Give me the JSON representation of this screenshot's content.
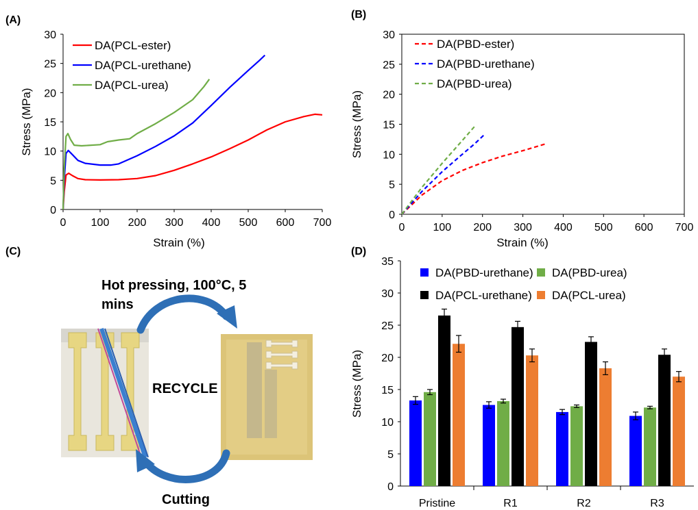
{
  "panels": {
    "a": "(A)",
    "b": "(B)",
    "c": "(C)",
    "d": "(D)"
  },
  "photo": {
    "top_caption_line1": "Hot pressing, 100°C, 5",
    "top_caption_line2": "mins",
    "center_label": "RECYCLE",
    "bottom_caption": "Cutting"
  },
  "chart_data": [
    {
      "id": "A",
      "type": "line",
      "title": "",
      "xlabel": "Strain (%)",
      "ylabel": "Stress (MPa)",
      "xlim": [
        0,
        700
      ],
      "ylim": [
        0,
        30
      ],
      "xticks": [
        0,
        100,
        200,
        300,
        400,
        500,
        600,
        700
      ],
      "yticks": [
        0,
        5,
        10,
        15,
        20,
        25,
        30
      ],
      "grid": false,
      "legend": "top-left",
      "series": [
        {
          "name": "DA(PCL-ester)",
          "color": "#ff0000",
          "dash": "solid",
          "points": [
            [
              0,
              0
            ],
            [
              3,
              3
            ],
            [
              8,
              5.9
            ],
            [
              15,
              6.2
            ],
            [
              25,
              5.8
            ],
            [
              40,
              5.3
            ],
            [
              60,
              5.1
            ],
            [
              100,
              5.05
            ],
            [
              150,
              5.1
            ],
            [
              200,
              5.3
            ],
            [
              250,
              5.8
            ],
            [
              300,
              6.7
            ],
            [
              350,
              7.8
            ],
            [
              400,
              9.0
            ],
            [
              450,
              10.4
            ],
            [
              500,
              11.9
            ],
            [
              550,
              13.6
            ],
            [
              600,
              15.0
            ],
            [
              650,
              15.9
            ],
            [
              680,
              16.3
            ],
            [
              700,
              16.2
            ]
          ]
        },
        {
          "name": "DA(PCL-urethane)",
          "color": "#0000ff",
          "dash": "solid",
          "points": [
            [
              0,
              0
            ],
            [
              3,
              5
            ],
            [
              8,
              9.6
            ],
            [
              14,
              10.1
            ],
            [
              25,
              9.4
            ],
            [
              40,
              8.4
            ],
            [
              60,
              7.9
            ],
            [
              100,
              7.6
            ],
            [
              130,
              7.6
            ],
            [
              150,
              7.8
            ],
            [
              200,
              9.2
            ],
            [
              250,
              10.8
            ],
            [
              300,
              12.6
            ],
            [
              350,
              14.8
            ],
            [
              400,
              17.8
            ],
            [
              450,
              20.9
            ],
            [
              500,
              23.8
            ],
            [
              530,
              25.5
            ],
            [
              545,
              26.4
            ]
          ]
        },
        {
          "name": "DA(PCL-urea)",
          "color": "#70ad47",
          "dash": "solid",
          "points": [
            [
              0,
              0
            ],
            [
              3,
              7
            ],
            [
              8,
              12.5
            ],
            [
              13,
              13.0
            ],
            [
              20,
              12.0
            ],
            [
              30,
              11.0
            ],
            [
              50,
              10.9
            ],
            [
              100,
              11.1
            ],
            [
              120,
              11.6
            ],
            [
              150,
              11.9
            ],
            [
              180,
              12.1
            ],
            [
              200,
              13.0
            ],
            [
              250,
              14.7
            ],
            [
              300,
              16.6
            ],
            [
              350,
              18.8
            ],
            [
              380,
              21.0
            ],
            [
              395,
              22.3
            ]
          ]
        }
      ]
    },
    {
      "id": "B",
      "type": "line",
      "title": "",
      "xlabel": "Strain (%)",
      "ylabel": "Stress (MPa)",
      "xlim": [
        0,
        700
      ],
      "ylim": [
        0,
        30
      ],
      "xticks": [
        0,
        100,
        200,
        300,
        400,
        500,
        600,
        700
      ],
      "yticks": [
        0,
        5,
        10,
        15,
        20,
        25,
        30
      ],
      "grid": false,
      "legend": "top-left",
      "series": [
        {
          "name": "DA(PBD-ester)",
          "color": "#ff0000",
          "dash": "dashed",
          "points": [
            [
              0,
              0
            ],
            [
              50,
              3.2
            ],
            [
              100,
              5.6
            ],
            [
              150,
              7.3
            ],
            [
              200,
              8.6
            ],
            [
              250,
              9.7
            ],
            [
              300,
              10.6
            ],
            [
              355,
              11.7
            ]
          ]
        },
        {
          "name": "DA(PBD-urethane)",
          "color": "#0000ff",
          "dash": "dashed",
          "points": [
            [
              0,
              0
            ],
            [
              50,
              3.8
            ],
            [
              100,
              7.1
            ],
            [
              150,
              10.0
            ],
            [
              180,
              11.7
            ],
            [
              205,
              13.3
            ]
          ]
        },
        {
          "name": "DA(PBD-urea)",
          "color": "#70ad47",
          "dash": "dashed",
          "points": [
            [
              0,
              0
            ],
            [
              50,
              4.5
            ],
            [
              100,
              8.5
            ],
            [
              150,
              12.3
            ],
            [
              180,
              14.6
            ]
          ]
        }
      ]
    },
    {
      "id": "D",
      "type": "bar",
      "title": "",
      "xlabel": "",
      "ylabel": "Stress (MPa)",
      "ylim": [
        0,
        35
      ],
      "yticks": [
        0,
        5,
        10,
        15,
        20,
        25,
        30,
        35
      ],
      "grid": false,
      "legend": "top",
      "categories": [
        "Pristine",
        "R1",
        "R2",
        "R3"
      ],
      "series": [
        {
          "name": "DA(PBD-urethane)",
          "color": "#0000ff",
          "values": [
            13.3,
            12.6,
            11.5,
            10.9
          ],
          "errors": [
            0.6,
            0.5,
            0.4,
            0.6
          ]
        },
        {
          "name": "DA(PBD-urea)",
          "color": "#70ad47",
          "values": [
            14.6,
            13.2,
            12.4,
            12.2
          ],
          "errors": [
            0.4,
            0.3,
            0.2,
            0.2
          ]
        },
        {
          "name": "DA(PCL-urethane)",
          "color": "#000000",
          "values": [
            26.5,
            24.7,
            22.4,
            20.4
          ],
          "errors": [
            1.0,
            0.9,
            0.8,
            0.9
          ]
        },
        {
          "name": "DA(PCL-urea)",
          "color": "#ed7d31",
          "values": [
            22.1,
            20.3,
            18.3,
            17.0
          ],
          "errors": [
            1.3,
            1.0,
            1.0,
            0.8
          ]
        }
      ]
    }
  ]
}
